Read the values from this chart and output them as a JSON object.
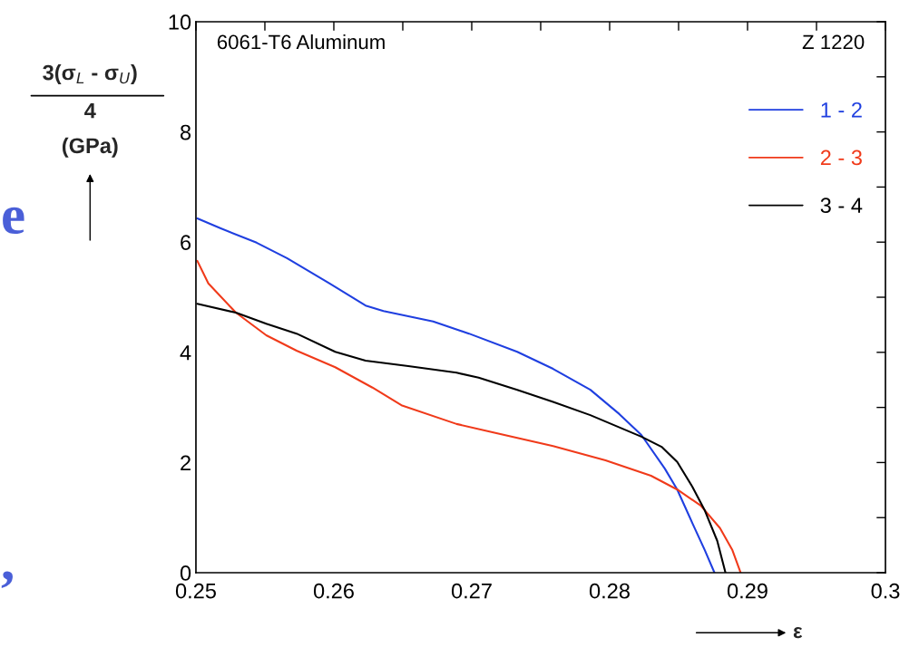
{
  "chart_data": {
    "type": "line",
    "xlabel": "ε",
    "ylabel": "3(σ$_{L}$ - σ$_{U}$)\n4\n(GPa)",
    "annotations": [
      "6061-T6 Aluminum",
      "Z 1220",
      "e",
      ","
    ],
    "xlim": [
      0.25,
      0.3
    ],
    "ylim": [
      0,
      10
    ],
    "xticks": [
      0.25,
      {
        "value": 0.255,
        "label": null
      },
      0.26,
      {
        "value": 0.265,
        "label": null
      },
      0.27,
      {
        "value": 0.275,
        "label": null
      },
      0.28,
      {
        "value": 0.285,
        "label": null
      },
      0.29,
      {
        "value": 0.295,
        "label": null
      },
      0.3
    ],
    "yticks": [
      0,
      {
        "value": 1,
        "label": null
      },
      2,
      {
        "value": 3,
        "label": null
      },
      4,
      {
        "value": 5,
        "label": null
      },
      6,
      {
        "value": 7,
        "label": null
      },
      8,
      {
        "value": 9,
        "label": null
      },
      10
    ],
    "grid": false,
    "legend": "right",
    "marker": "none",
    "line_style": "solid",
    "series": [
      {
        "name": "1 - 2",
        "color": "#1f3fe0",
        "x": [
          0.2501,
          0.2518,
          0.2544,
          0.2566,
          0.2597,
          0.2623,
          0.2636,
          0.2672,
          0.2698,
          0.2733,
          0.2759,
          0.2786,
          0.2807,
          0.2823,
          0.284,
          0.2849,
          0.286,
          0.2869,
          0.2876
        ],
        "values": [
          6.43,
          6.25,
          5.99,
          5.71,
          5.25,
          4.85,
          4.75,
          4.56,
          4.34,
          4.01,
          3.7,
          3.32,
          2.88,
          2.5,
          1.89,
          1.51,
          0.9,
          0.41,
          0
        ]
      },
      {
        "name": "2 - 3",
        "color": "#f03a1a",
        "x": [
          0.2501,
          0.2509,
          0.2529,
          0.2551,
          0.2573,
          0.2601,
          0.2628,
          0.2649,
          0.2689,
          0.2715,
          0.2759,
          0.2797,
          0.283,
          0.2849,
          0.2866,
          0.288,
          0.2889,
          0.2895
        ],
        "values": [
          5.66,
          5.25,
          4.72,
          4.31,
          4.03,
          3.73,
          3.36,
          3.04,
          2.7,
          2.55,
          2.3,
          2.04,
          1.76,
          1.51,
          1.22,
          0.81,
          0.41,
          0
        ]
      },
      {
        "name": "3 - 4",
        "color": "#000000",
        "x": [
          0.2501,
          0.2529,
          0.2551,
          0.2573,
          0.2601,
          0.2623,
          0.2654,
          0.2689,
          0.2705,
          0.2733,
          0.2759,
          0.2786,
          0.2823,
          0.2838,
          0.2849,
          0.286,
          0.2869,
          0.2878,
          0.2884
        ],
        "values": [
          4.88,
          4.72,
          4.52,
          4.34,
          4.01,
          3.85,
          3.75,
          3.63,
          3.54,
          3.32,
          3.1,
          2.86,
          2.47,
          2.28,
          2.01,
          1.56,
          1.13,
          0.58,
          0
        ]
      }
    ]
  }
}
